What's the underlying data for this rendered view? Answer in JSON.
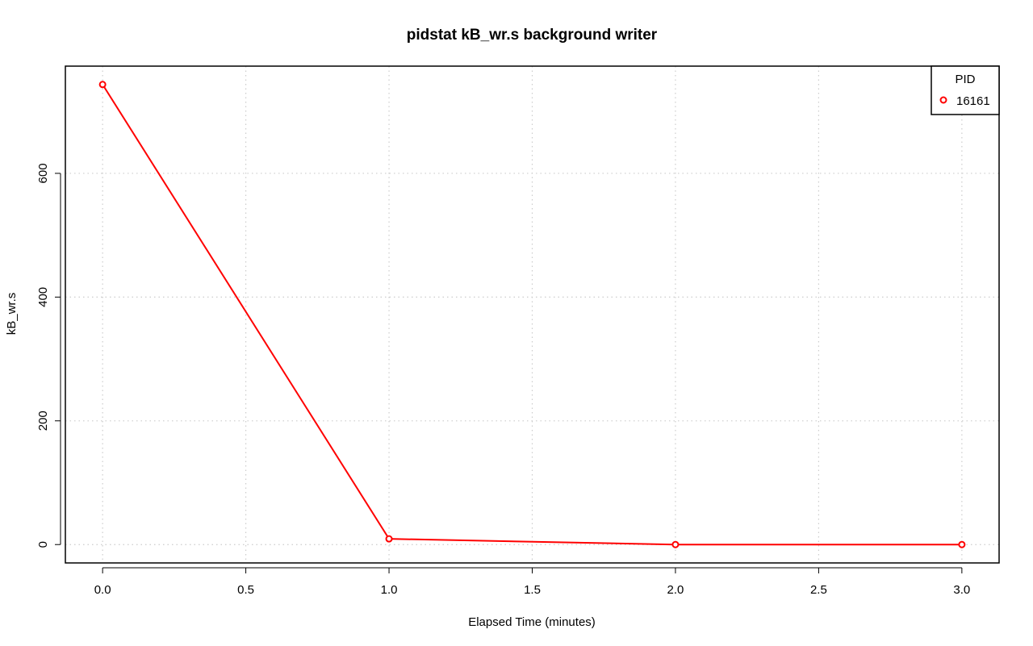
{
  "chart_data": {
    "type": "line",
    "title": "pidstat kB_wr.s background writer",
    "xlabel": "Elapsed Time (minutes)",
    "ylabel": "kB_wr.s",
    "xlim": [
      -0.13,
      3.13
    ],
    "ylim": [
      -29.7,
      773.3
    ],
    "x_ticks": [
      0,
      0.5,
      1,
      1.5,
      2,
      2.5,
      3
    ],
    "x_tick_labels": [
      "0.0",
      "0.5",
      "1.0",
      "1.5",
      "2.0",
      "2.5",
      "3.0"
    ],
    "y_ticks": [
      0,
      200,
      400,
      600
    ],
    "y_tick_labels": [
      "0",
      "200",
      "400",
      "600"
    ],
    "grid": true,
    "legend": {
      "title": "PID",
      "position": "top-right"
    },
    "series": [
      {
        "name": "16161",
        "color": "#ff0000",
        "x": [
          0,
          1,
          2,
          3
        ],
        "y": [
          743.6,
          9.2,
          0,
          0
        ]
      }
    ]
  }
}
